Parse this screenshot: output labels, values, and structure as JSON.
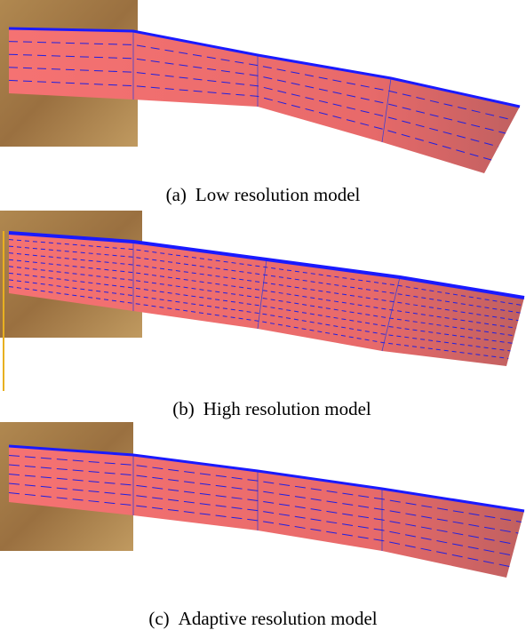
{
  "panels": [
    {
      "label": "(a)",
      "caption": "Low resolution model"
    },
    {
      "label": "(b)",
      "caption": "High resolution model"
    },
    {
      "label": "(c)",
      "caption": "Adaptive resolution model"
    }
  ]
}
